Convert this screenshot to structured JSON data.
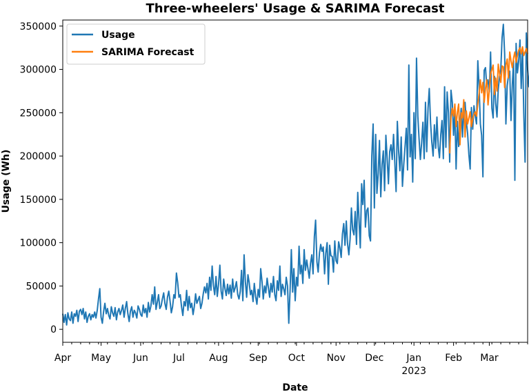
{
  "chart_data": {
    "type": "line",
    "title": "Three-wheelers' Usage & SARIMA Forecast",
    "xlabel": "Date",
    "ylabel": "Usage (Wh)",
    "ylim": [
      -15000,
      357000
    ],
    "xlim": [
      "2022-04-01",
      "2023-03-31"
    ],
    "yticks": [
      0,
      50000,
      100000,
      150000,
      200000,
      250000,
      300000,
      350000
    ],
    "xticks": [
      {
        "date": "2022-04-01",
        "label": "Apr"
      },
      {
        "date": "2022-05-01",
        "label": "May"
      },
      {
        "date": "2022-06-01",
        "label": "Jun"
      },
      {
        "date": "2022-07-01",
        "label": "Jul"
      },
      {
        "date": "2022-08-01",
        "label": "Aug"
      },
      {
        "date": "2022-09-01",
        "label": "Sep"
      },
      {
        "date": "2022-10-01",
        "label": "Oct"
      },
      {
        "date": "2022-11-01",
        "label": "Nov"
      },
      {
        "date": "2022-12-01",
        "label": "Dec"
      },
      {
        "date": "2023-01-01",
        "label": "Jan",
        "sublabel": "2023"
      },
      {
        "date": "2023-02-01",
        "label": "Feb"
      },
      {
        "date": "2023-03-01",
        "label": "Mar"
      }
    ],
    "grid": false,
    "legend_position": "top-left",
    "series": [
      {
        "name": "Usage",
        "color": "#1f77b4",
        "x_start": "2022-04-01",
        "x_step_days": 1,
        "values": [
          18000,
          8000,
          17000,
          5000,
          19000,
          12000,
          10000,
          20000,
          7000,
          18000,
          15000,
          22000,
          9000,
          21000,
          23000,
          17000,
          24000,
          12000,
          20000,
          8000,
          15000,
          18000,
          11000,
          17000,
          14000,
          20000,
          13000,
          22000,
          35000,
          47000,
          14000,
          7000,
          21000,
          30000,
          18000,
          24000,
          16000,
          12000,
          26000,
          19000,
          15000,
          25000,
          11000,
          20000,
          24000,
          17000,
          22000,
          28000,
          14000,
          24000,
          32000,
          18000,
          9000,
          21000,
          26000,
          14000,
          22000,
          19000,
          13000,
          27000,
          23000,
          17000,
          15000,
          28000,
          19000,
          24000,
          14000,
          31000,
          20000,
          27000,
          40000,
          29000,
          49000,
          23000,
          31000,
          40000,
          24000,
          27000,
          35000,
          42000,
          30000,
          23000,
          37000,
          44000,
          33000,
          19000,
          26000,
          40000,
          36000,
          65000,
          54000,
          37000,
          40000,
          26000,
          16000,
          32000,
          27000,
          45000,
          22000,
          38000,
          25000,
          30000,
          17000,
          26000,
          41000,
          30000,
          34000,
          38000,
          24000,
          30000,
          41000,
          49000,
          42000,
          53000,
          35000,
          60000,
          45000,
          73000,
          50000,
          40000,
          61000,
          38000,
          52000,
          74000,
          44000,
          35000,
          58000,
          47000,
          39000,
          52000,
          41000,
          51000,
          36000,
          58000,
          43000,
          48000,
          55000,
          40000,
          35000,
          44000,
          68000,
          33000,
          86000,
          55000,
          37000,
          63000,
          54000,
          40000,
          45000,
          32000,
          53000,
          38000,
          29000,
          46000,
          37000,
          70000,
          55000,
          35000,
          50000,
          42000,
          59000,
          48000,
          37000,
          53000,
          43000,
          61000,
          40000,
          33000,
          56000,
          45000,
          73000,
          38000,
          52000,
          47000,
          40000,
          60000,
          50000,
          7000,
          45000,
          92000,
          43000,
          70000,
          33000,
          60000,
          50000,
          96000,
          64000,
          74000,
          53000,
          92000,
          68000,
          80000,
          70000,
          59000,
          76000,
          86000,
          64000,
          107000,
          126000,
          78000,
          66000,
          88000,
          98000,
          90000,
          95000,
          64000,
          88000,
          100000,
          52000,
          97000,
          85000,
          84000,
          66000,
          102000,
          79000,
          76000,
          101000,
          94000,
          83000,
          110000,
          122000,
          97000,
          125000,
          99000,
          86000,
          104000,
          140000,
          115000,
          109000,
          136000,
          98000,
          158000,
          125000,
          94000,
          168000,
          144000,
          172000,
          118000,
          137000,
          140000,
          108000,
          102000,
          200000,
          237000,
          140000,
          225000,
          157000,
          180000,
          218000,
          153000,
          190000,
          206000,
          160000,
          224000,
          198000,
          168000,
          205000,
          213000,
          196000,
          225000,
          193000,
          159000,
          240000,
          205000,
          183000,
          222000,
          165000,
          190000,
          210000,
          232000,
          184000,
          305000,
          199000,
          225000,
          170000,
          250000,
          197000,
          313000,
          246000,
          220000,
          196000,
          215000,
          239000,
          197000,
          262000,
          205000,
          255000,
          278000,
          238000,
          216000,
          200000,
          236000,
          209000,
          245000,
          211000,
          198000,
          225000,
          241000,
          197000,
          280000,
          210000,
          274000,
          250000,
          193000,
          276000,
          262000,
          224000,
          254000,
          185000,
          240000,
          211000,
          238000,
          255000,
          222000,
          255000,
          262000,
          240000,
          226000,
          202000,
          185000,
          256000,
          231000,
          258000,
          246000,
          237000,
          310000,
          281000,
          237000,
          224000,
          176000,
          299000,
          302000,
          281000,
          288000,
          274000,
          320000,
          255000,
          244000,
          292000,
          261000,
          245000,
          277000,
          292000,
          300000,
          337000,
          352000,
          318000,
          237000,
          281000,
          293000,
          298000,
          241000,
          282000,
          310000,
          172000,
          330000,
          296000,
          309000,
          334000,
          278000,
          325000,
          250000,
          193000,
          342000,
          300000,
          280000,
          303000
        ]
      },
      {
        "name": "SARIMA Forecast",
        "color": "#ff7f0e",
        "x_start": "2023-01-29",
        "x_step_days": 1,
        "values": [
          203000,
          245000,
          255000,
          246000,
          260000,
          234000,
          251000,
          260000,
          213000,
          250000,
          244000,
          265000,
          222000,
          252000,
          237000,
          244000,
          251000,
          234000,
          243000,
          248000,
          251000,
          246000,
          260000,
          272000,
          288000,
          273000,
          285000,
          262000,
          278000,
          288000,
          259000,
          277000,
          295000,
          300000,
          305000,
          271000,
          290000,
          275000,
          306000,
          295000,
          285000,
          304000,
          303000,
          279000,
          305000,
          312000,
          290000,
          320000,
          310000,
          302000,
          313000,
          320000,
          308000,
          316000,
          322000,
          325000,
          318000,
          326000,
          316000,
          320000,
          324000,
          318000
        ]
      }
    ]
  }
}
